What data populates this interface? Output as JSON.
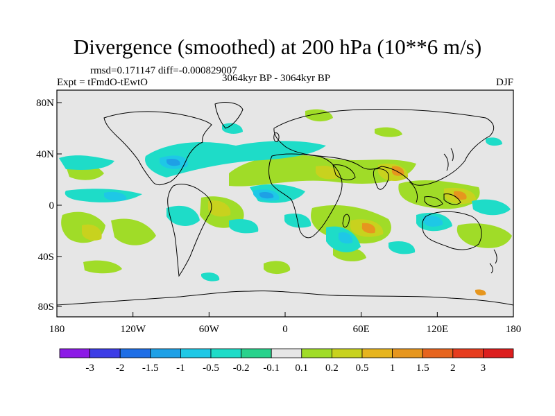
{
  "title": "Divergence (smoothed) at 200 hPa (10**6 m/s)",
  "stats": {
    "rmsd_label": "rmsd=",
    "rmsd": "0.171147",
    "diff_label": "diff=",
    "diff": "-0.000829007"
  },
  "experiment": "Expt = tFmdO-tEwtO",
  "period": "3064kyr BP - 3064kyr BP",
  "season": "DJF",
  "lat_ticks": [
    "80N",
    "40N",
    "0",
    "40S",
    "80S"
  ],
  "lon_ticks": [
    "180",
    "120W",
    "60W",
    "0",
    "60E",
    "120E",
    "180"
  ],
  "colorbar": {
    "labels": [
      "-3",
      "-2",
      "-1.5",
      "-1",
      "-0.5",
      "-0.2",
      "-0.1",
      "0.1",
      "0.2",
      "0.5",
      "1",
      "1.5",
      "2",
      "3"
    ],
    "colors": [
      "#8c1ae6",
      "#3c3ce6",
      "#1e6ee6",
      "#1ea0e6",
      "#1ec8e6",
      "#1edcc8",
      "#28d28c",
      "#e6e6e6",
      "#a0dc28",
      "#c8d21e",
      "#e6b41e",
      "#e6961e",
      "#e6641e",
      "#e63c1e",
      "#dc1e1e"
    ]
  },
  "field_colors": {
    "background": "#e6e6e6",
    "neg_weak": "#1edcc8",
    "neg_mod": "#1ec8e6",
    "neg_strong": "#1ea0e6",
    "pos_weak": "#a0dc28",
    "pos_mod": "#c8d21e",
    "pos_strong": "#e6b41e",
    "pos_max": "#e6961e"
  }
}
